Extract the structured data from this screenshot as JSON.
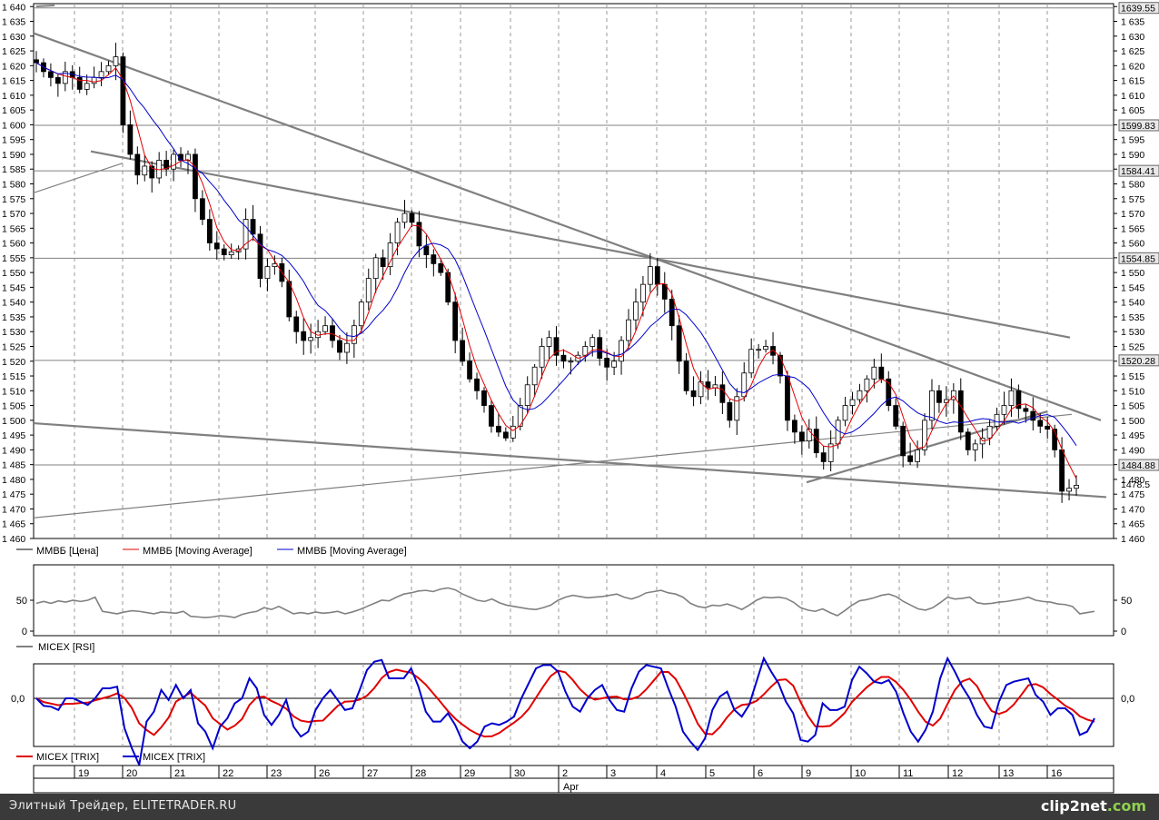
{
  "chart_data": [
    {
      "type": "candlestick",
      "name": "ММВБ",
      "ylim": [
        1460,
        1641
      ],
      "y_ticks": [
        1460,
        1465,
        1470,
        1475,
        1480,
        1485,
        1490,
        1495,
        1500,
        1505,
        1510,
        1515,
        1520,
        1525,
        1530,
        1535,
        1540,
        1545,
        1550,
        1555,
        1560,
        1565,
        1570,
        1575,
        1580,
        1585,
        1590,
        1595,
        1600,
        1605,
        1610,
        1615,
        1620,
        1625,
        1630,
        1635,
        1640
      ],
      "price_labels": [
        "1639.55",
        "1599.83",
        "1584.41",
        "1554.85",
        "1520.28",
        "1484.88",
        "1478.5"
      ],
      "horizontal_levels": [
        1639.55,
        1599.83,
        1584.41,
        1554.85,
        1520.28,
        1484.88
      ],
      "close_series": [
        1621,
        1618,
        1616,
        1614,
        1618,
        1616,
        1612,
        1614,
        1616,
        1618,
        1620,
        1623,
        1600,
        1590,
        1583,
        1586,
        1582,
        1588,
        1585,
        1590,
        1588,
        1590,
        1575,
        1568,
        1560,
        1558,
        1556,
        1557,
        1558,
        1568,
        1563,
        1548,
        1552,
        1553,
        1547,
        1535,
        1530,
        1527,
        1528,
        1530,
        1532,
        1527,
        1523,
        1526,
        1532,
        1540,
        1548,
        1555,
        1552,
        1560,
        1567,
        1570,
        1567,
        1559,
        1556,
        1553,
        1550,
        1540,
        1527,
        1520,
        1514,
        1510,
        1505,
        1498,
        1496,
        1494,
        1498,
        1505,
        1512,
        1518,
        1525,
        1528,
        1522,
        1520,
        1520,
        1522,
        1525,
        1528,
        1521,
        1518,
        1520,
        1527,
        1534,
        1540,
        1546,
        1552,
        1546,
        1541,
        1532,
        1520,
        1510,
        1508,
        1513,
        1511,
        1512,
        1506,
        1500,
        1508,
        1516,
        1524,
        1524,
        1525,
        1522,
        1515,
        1500,
        1496,
        1493,
        1497,
        1489,
        1486,
        1492,
        1500,
        1505,
        1507,
        1510,
        1514,
        1518,
        1514,
        1505,
        1498,
        1488,
        1486,
        1490,
        1500,
        1510,
        1506,
        1507,
        1510,
        1496,
        1490,
        1492,
        1494,
        1498,
        1502,
        1505,
        1510,
        1504,
        1503,
        1500,
        1498,
        1497,
        1490,
        1476,
        1477,
        1478
      ],
      "legend": [
        "ММВБ [Цена]",
        "ММВБ [Moving Average]",
        "ММВБ [Moving Average]"
      ],
      "series_colors": [
        "#000000",
        "#e00000",
        "#0000cc"
      ]
    },
    {
      "type": "line",
      "name": "MICEX [RSI]",
      "ylim": [
        0,
        100
      ],
      "y_ticks": [
        0,
        50
      ],
      "legend": [
        "MICEX [RSI]"
      ],
      "values": [
        45,
        48,
        45,
        49,
        47,
        50,
        48,
        50,
        55,
        32,
        30,
        28,
        31,
        33,
        32,
        30,
        28,
        31,
        30,
        29,
        32,
        24,
        23,
        22,
        23,
        25,
        24,
        22,
        27,
        30,
        32,
        38,
        35,
        40,
        34,
        28,
        30,
        28,
        31,
        29,
        30,
        32,
        28,
        31,
        35,
        40,
        45,
        50,
        49,
        55,
        60,
        62,
        65,
        66,
        64,
        68,
        70,
        67,
        60,
        55,
        50,
        48,
        52,
        46,
        42,
        40,
        38,
        36,
        35,
        38,
        42,
        50,
        55,
        58,
        56,
        54,
        55,
        56,
        58,
        60,
        55,
        52,
        56,
        62,
        64,
        66,
        62,
        60,
        55,
        45,
        40,
        38,
        42,
        41,
        44,
        40,
        35,
        42,
        50,
        55,
        54,
        55,
        53,
        47,
        38,
        34,
        32,
        36,
        30,
        25,
        33,
        42,
        49,
        51,
        54,
        58,
        60,
        56,
        48,
        42,
        36,
        34,
        38,
        46,
        55,
        52,
        53,
        55,
        46,
        44,
        45,
        47,
        48,
        50,
        52,
        55,
        50,
        48,
        47,
        44,
        43,
        40,
        28,
        30,
        32
      ],
      "color": "#808080"
    },
    {
      "type": "line",
      "name": "MICEX [TRIX]",
      "y_ticks_labels": [
        "0,0"
      ],
      "legend": [
        "MICEX [TRIX]",
        "MICEX [TRIX]"
      ],
      "series": [
        {
          "name": "MICEX [TRIX]",
          "color": "#e00000"
        },
        {
          "name": "MICEX [TRIX]",
          "color": "#0000cc"
        }
      ]
    }
  ],
  "x_axis": {
    "labels": [
      "19",
      "20",
      "21",
      "22",
      "23",
      "26",
      "27",
      "28",
      "29",
      "30",
      "2",
      "3",
      "4",
      "5",
      "6",
      "9",
      "10",
      "11",
      "12",
      "13",
      "16"
    ],
    "month_label": "Apr"
  },
  "footer": {
    "left_text": "Элитный Трейдер, ELITETRADER.RU",
    "brand": "clip2net",
    "brand_suffix": ".com"
  }
}
